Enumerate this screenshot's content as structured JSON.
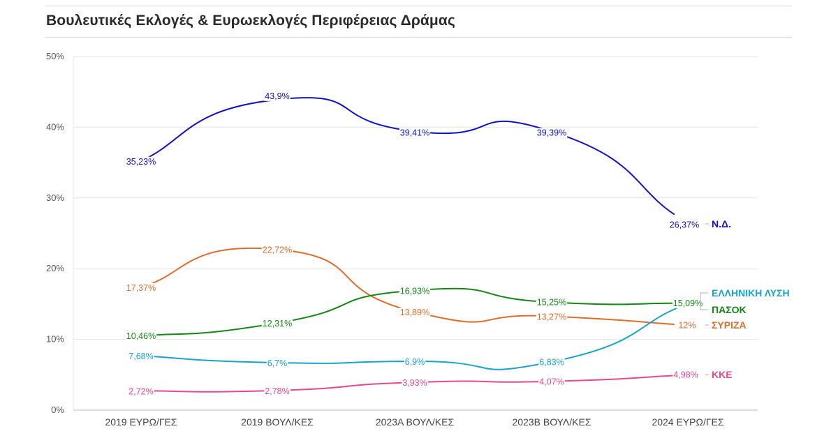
{
  "header": {
    "title": "Βουλευτικές Εκλογές & Ευρωεκλογές Περιφέρειας Δράμας"
  },
  "chart_data": {
    "type": "line",
    "title": "Βουλευτικές Εκλογές & Ευρωεκλογές Περιφέρειας Δράμας",
    "x": [
      "2019 ΕΥΡΩ/ΓΕΣ",
      "2019 ΒΟΥΛ/ΚΕΣ",
      "2023Α ΒΟΥΛ/ΚΕΣ",
      "2023Β ΒΟΥΛ/ΚΕΣ",
      "2024 ΕΥΡΩ/ΓΕΣ"
    ],
    "ylim": [
      0,
      50
    ],
    "yticks": [
      {
        "value": 0,
        "label": "0%"
      },
      {
        "value": 10,
        "label": "10%"
      },
      {
        "value": 20,
        "label": "20%"
      },
      {
        "value": 30,
        "label": "30%"
      },
      {
        "value": 40,
        "label": "40%"
      },
      {
        "value": 50,
        "label": "50%"
      }
    ],
    "grid": true,
    "legend": "inline-right",
    "series": [
      {
        "name": "Ν.Δ.",
        "color": "#1212cc",
        "values": [
          35.23,
          43.9,
          39.41,
          39.39,
          26.37
        ],
        "labels": [
          "35,23%",
          "43,9%",
          "39,41%",
          "39,39%",
          "26,37%"
        ]
      },
      {
        "name": "ΣΥΡΙΖΑ",
        "color": "#e06c2c",
        "values": [
          17.37,
          22.72,
          13.89,
          13.27,
          12
        ],
        "labels": [
          "17,37%",
          "22,72%",
          "13,89%",
          "13,27%",
          "12%"
        ]
      },
      {
        "name": "ΠΑΣΟΚ",
        "color": "#118811",
        "values": [
          10.46,
          12.31,
          16.93,
          15.25,
          15.09
        ],
        "labels": [
          "10,46%",
          "12,31%",
          "16,93%",
          "15,25%",
          "15,09%"
        ]
      },
      {
        "name": "ΕΛΛΗΝΙΚΗ ΛΥΣΗ",
        "color": "#17a3cc",
        "values": [
          7.68,
          6.7,
          6.9,
          6.83,
          15.09
        ],
        "labels": [
          "7,68%",
          "6,7%",
          "6,9%",
          "6,83%",
          ""
        ]
      },
      {
        "name": "ΚΚΕ",
        "color": "#e8488c",
        "values": [
          2.72,
          2.78,
          3.93,
          4.07,
          4.98
        ],
        "labels": [
          "2,72%",
          "2,78%",
          "3,93%",
          "4,07%",
          "4,98%"
        ]
      }
    ]
  }
}
